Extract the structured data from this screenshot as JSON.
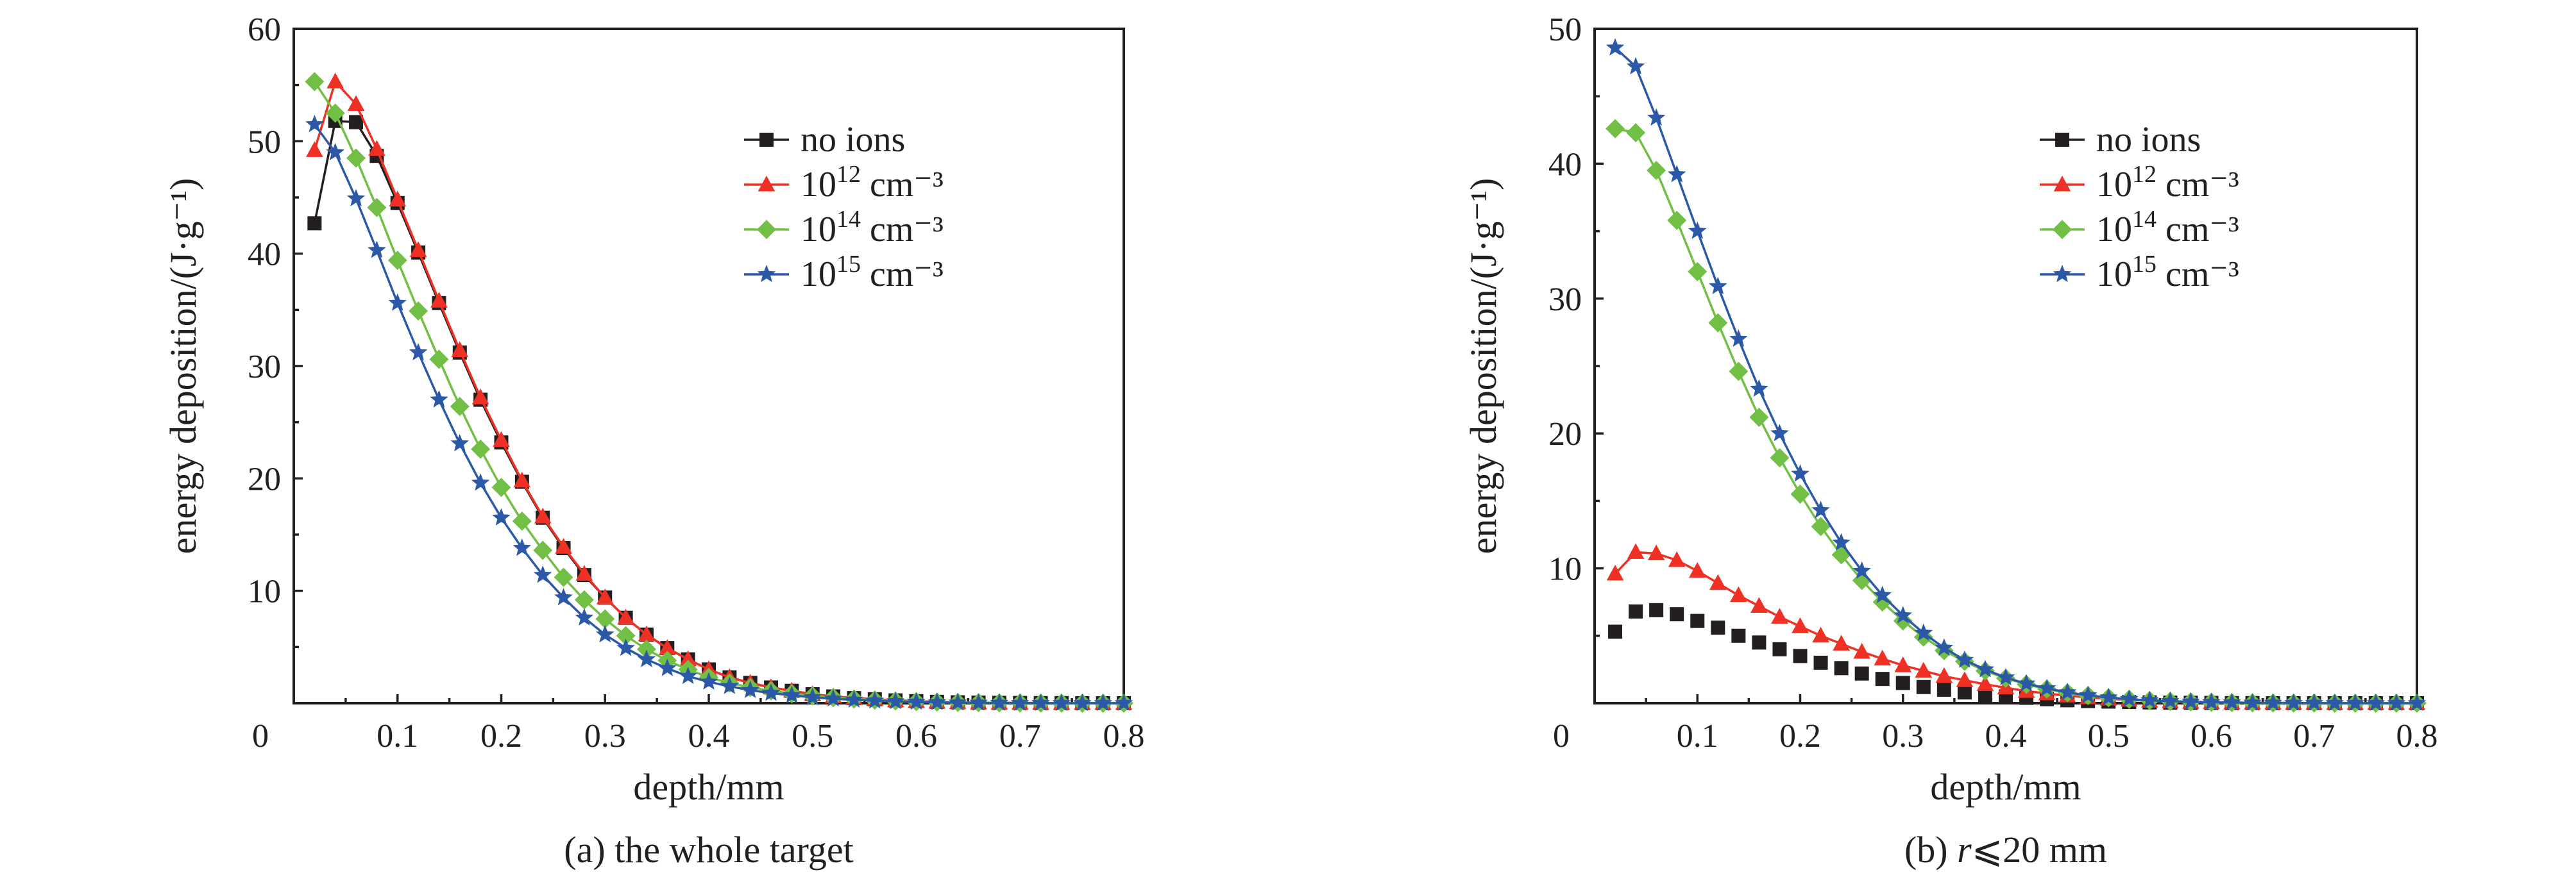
{
  "chart_data": [
    {
      "type": "line",
      "caption": "(a) the whole target",
      "xlabel": "depth/mm",
      "ylabel": "energy deposition/(J·g⁻¹)",
      "xlim": [
        0,
        0.8
      ],
      "ylim": [
        0,
        60
      ],
      "xticks": [
        0,
        0.1,
        0.2,
        0.3,
        0.4,
        0.5,
        0.6,
        0.7,
        0.8
      ],
      "yticks": [
        10,
        20,
        30,
        40,
        50,
        60
      ],
      "xtick_labels": [
        "0",
        "0.1",
        "0.2",
        "0.3",
        "0.4",
        "0.5",
        "0.6",
        "0.7",
        "0.8"
      ],
      "ytick_labels": [
        "10",
        "20",
        "30",
        "40",
        "50",
        "60"
      ],
      "legend_position": "top-right",
      "grid": false,
      "x": [
        0.02,
        0.04,
        0.06,
        0.08,
        0.1,
        0.12,
        0.14,
        0.16,
        0.18,
        0.2,
        0.22,
        0.24,
        0.26,
        0.28,
        0.3,
        0.32,
        0.34,
        0.36,
        0.38,
        0.4,
        0.42,
        0.44,
        0.46,
        0.48,
        0.5,
        0.52,
        0.54,
        0.56,
        0.58,
        0.6,
        0.62,
        0.64,
        0.66,
        0.68,
        0.7,
        0.72,
        0.74,
        0.76,
        0.78,
        0.8
      ],
      "series": [
        {
          "name_prefix": "no ions",
          "name_sup": "",
          "name_suffix": "",
          "color": "#231f20",
          "marker": "square",
          "values": [
            42.7,
            51.8,
            51.7,
            48.7,
            44.5,
            40.1,
            35.6,
            31.2,
            27.0,
            23.2,
            19.7,
            16.5,
            13.8,
            11.4,
            9.4,
            7.6,
            6.1,
            4.9,
            3.9,
            3.0,
            2.3,
            1.8,
            1.4,
            1.1,
            0.8,
            0.6,
            0.45,
            0.35,
            0.25,
            0.18,
            0.12,
            0.08,
            0.05,
            0.03,
            0.02,
            0.01,
            0.01,
            0.0,
            0.0,
            0.0
          ]
        },
        {
          "name_prefix": "10",
          "name_sup": "12",
          "name_suffix": " cm⁻³",
          "color": "#ee3124",
          "marker": "triangle",
          "values": [
            49.2,
            55.3,
            53.3,
            49.3,
            44.8,
            40.3,
            35.8,
            31.4,
            27.2,
            23.4,
            19.8,
            16.6,
            13.9,
            11.5,
            9.4,
            7.6,
            6.1,
            4.9,
            3.9,
            3.0,
            2.3,
            1.8,
            1.4,
            1.1,
            0.8,
            0.6,
            0.45,
            0.35,
            0.25,
            0.18,
            0.12,
            0.08,
            0.05,
            0.03,
            0.02,
            0.01,
            0.01,
            0.0,
            0.0,
            0.0
          ]
        },
        {
          "name_prefix": "10",
          "name_sup": "14",
          "name_suffix": " cm⁻³",
          "color": "#71bf44",
          "marker": "diamond",
          "values": [
            55.3,
            52.5,
            48.5,
            44.1,
            39.4,
            34.9,
            30.6,
            26.4,
            22.6,
            19.2,
            16.2,
            13.6,
            11.2,
            9.2,
            7.5,
            6.0,
            4.8,
            3.8,
            3.0,
            2.3,
            1.8,
            1.4,
            1.1,
            0.85,
            0.65,
            0.5,
            0.38,
            0.28,
            0.2,
            0.14,
            0.1,
            0.07,
            0.05,
            0.03,
            0.02,
            0.01,
            0.01,
            0.0,
            0.0,
            0.0
          ]
        },
        {
          "name_prefix": "10",
          "name_sup": "15",
          "name_suffix": " cm⁻³",
          "color": "#2b59a8",
          "marker": "star",
          "values": [
            51.5,
            49.0,
            44.9,
            40.3,
            35.6,
            31.2,
            27.0,
            23.1,
            19.6,
            16.5,
            13.8,
            11.4,
            9.4,
            7.6,
            6.1,
            4.9,
            3.9,
            3.1,
            2.4,
            1.9,
            1.5,
            1.15,
            0.9,
            0.7,
            0.52,
            0.4,
            0.3,
            0.22,
            0.16,
            0.11,
            0.08,
            0.05,
            0.03,
            0.02,
            0.01,
            0.01,
            0.0,
            0.0,
            0.0,
            0.0
          ]
        }
      ]
    },
    {
      "type": "line",
      "caption_prefix": "(b) ",
      "caption_italic": "r",
      "caption_suffix": "⩽20 mm",
      "xlabel": "depth/mm",
      "ylabel": "energy deposition/(J·g⁻¹)",
      "xlim": [
        0,
        0.8
      ],
      "ylim": [
        0,
        50
      ],
      "xticks": [
        0,
        0.1,
        0.2,
        0.3,
        0.4,
        0.5,
        0.6,
        0.7,
        0.8
      ],
      "yticks": [
        10,
        20,
        30,
        40,
        50
      ],
      "xtick_labels": [
        "0",
        "0.1",
        "0.2",
        "0.3",
        "0.4",
        "0.5",
        "0.6",
        "0.7",
        "0.8"
      ],
      "ytick_labels": [
        "10",
        "20",
        "30",
        "40",
        "50"
      ],
      "legend_position": "top-right",
      "grid": false,
      "x": [
        0.02,
        0.04,
        0.06,
        0.08,
        0.1,
        0.12,
        0.14,
        0.16,
        0.18,
        0.2,
        0.22,
        0.24,
        0.26,
        0.28,
        0.3,
        0.32,
        0.34,
        0.36,
        0.38,
        0.4,
        0.42,
        0.44,
        0.46,
        0.48,
        0.5,
        0.52,
        0.54,
        0.56,
        0.58,
        0.6,
        0.62,
        0.64,
        0.66,
        0.68,
        0.7,
        0.72,
        0.74,
        0.76,
        0.78,
        0.8
      ],
      "series": [
        {
          "name_prefix": "no ions",
          "name_sup": "",
          "name_suffix": "",
          "color": "#231f20",
          "marker": "square",
          "line": false,
          "values": [
            5.3,
            6.8,
            6.9,
            6.6,
            6.1,
            5.6,
            5.0,
            4.5,
            4.0,
            3.5,
            3.0,
            2.6,
            2.2,
            1.8,
            1.5,
            1.2,
            1.0,
            0.8,
            0.6,
            0.5,
            0.4,
            0.3,
            0.22,
            0.16,
            0.12,
            0.09,
            0.06,
            0.04,
            0.03,
            0.02,
            0.01,
            0.01,
            0.0,
            0.0,
            0.0,
            0.0,
            0.0,
            0.0,
            0.0,
            0.0
          ]
        },
        {
          "name_prefix": "10",
          "name_sup": "12",
          "name_suffix": " cm⁻³",
          "color": "#ee3124",
          "marker": "triangle",
          "line": true,
          "values": [
            9.6,
            11.2,
            11.1,
            10.6,
            9.8,
            8.9,
            8.0,
            7.2,
            6.4,
            5.7,
            5.0,
            4.4,
            3.8,
            3.3,
            2.8,
            2.4,
            2.0,
            1.7,
            1.4,
            1.15,
            0.9,
            0.72,
            0.56,
            0.43,
            0.33,
            0.25,
            0.18,
            0.13,
            0.09,
            0.06,
            0.04,
            0.03,
            0.02,
            0.01,
            0.01,
            0.0,
            0.0,
            0.0,
            0.0,
            0.0
          ]
        },
        {
          "name_prefix": "10",
          "name_sup": "14",
          "name_suffix": " cm⁻³",
          "color": "#71bf44",
          "marker": "diamond",
          "line": true,
          "values": [
            42.6,
            42.3,
            39.5,
            35.8,
            32.0,
            28.2,
            24.6,
            21.2,
            18.2,
            15.5,
            13.1,
            11.0,
            9.1,
            7.5,
            6.1,
            4.9,
            3.9,
            3.1,
            2.4,
            1.85,
            1.4,
            1.05,
            0.78,
            0.57,
            0.41,
            0.29,
            0.2,
            0.14,
            0.1,
            0.07,
            0.05,
            0.03,
            0.02,
            0.01,
            0.01,
            0.0,
            0.0,
            0.0,
            0.0,
            0.0
          ]
        },
        {
          "name_prefix": "10",
          "name_sup": "15",
          "name_suffix": " cm⁻³",
          "color": "#2b59a8",
          "marker": "star",
          "line": true,
          "values": [
            48.6,
            47.2,
            43.4,
            39.2,
            35.0,
            30.9,
            27.0,
            23.3,
            20.0,
            17.0,
            14.3,
            11.9,
            9.8,
            8.0,
            6.5,
            5.2,
            4.1,
            3.2,
            2.5,
            1.9,
            1.45,
            1.1,
            0.8,
            0.58,
            0.42,
            0.3,
            0.21,
            0.15,
            0.1,
            0.07,
            0.05,
            0.03,
            0.02,
            0.01,
            0.01,
            0.0,
            0.0,
            0.0,
            0.0,
            0.0
          ]
        }
      ]
    }
  ]
}
